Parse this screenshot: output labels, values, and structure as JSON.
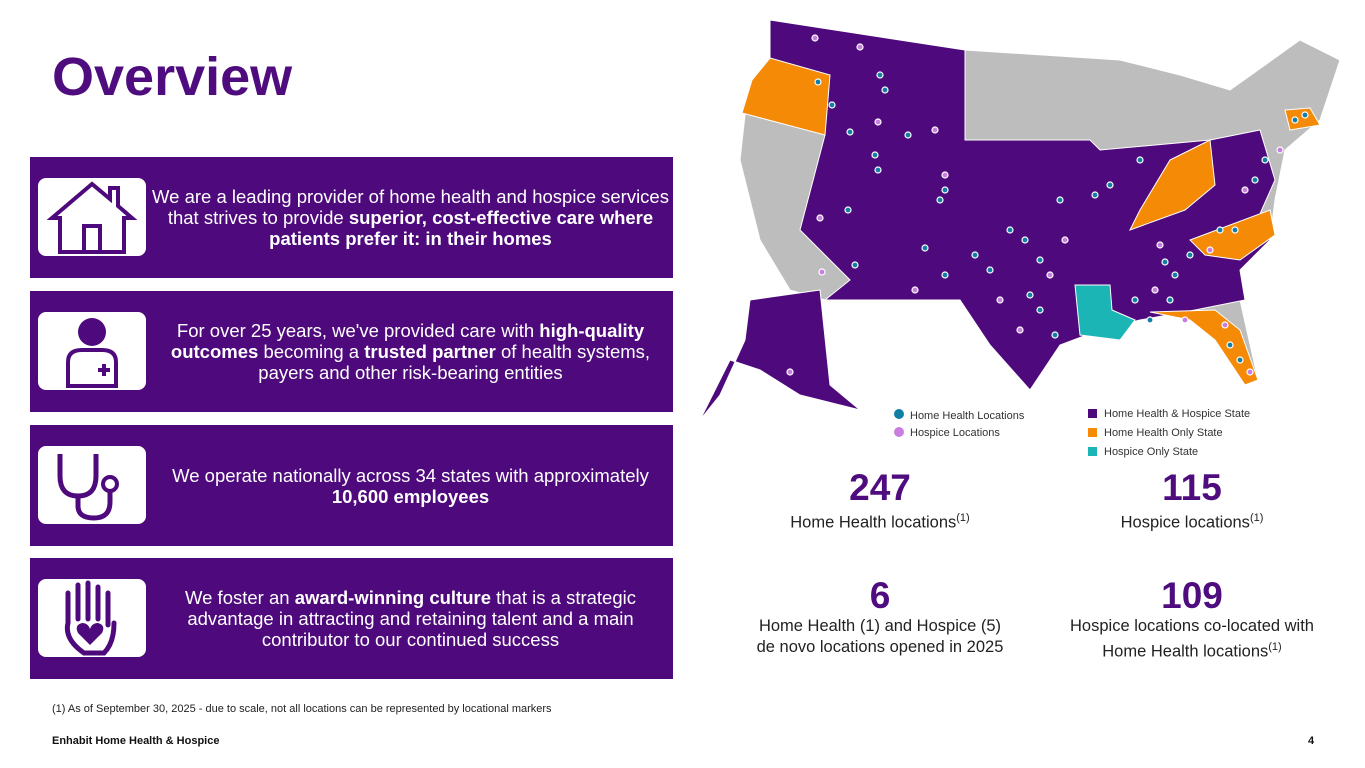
{
  "title": "Overview",
  "cards": [
    {
      "text": [
        "We are a leading provider of home health and hospice services that strives to provide ",
        "superior, cost-effective care where patients prefer it: in their homes"
      ]
    },
    {
      "text": [
        "For over 25 years, we've provided care with ",
        "high-quality outcomes",
        " becoming a ",
        "trusted partner",
        " of health systems, payers and other risk-bearing entities"
      ]
    },
    {
      "text": [
        "We operate nationally across 34 states with approximately ",
        "10,600 employees"
      ]
    },
    {
      "text": [
        "We foster an ",
        "award-winning culture",
        " that is a strategic advantage in attracting and retaining talent and a main contributor to our continued success"
      ]
    }
  ],
  "legend": [
    "Home Health Locations",
    "Hospice Locations",
    "Home Health & Hospice State",
    "Home Health Only State",
    "Hospice Only State"
  ],
  "stats": [
    {
      "value": 247,
      "lines": [
        "Home Health locations"
      ],
      "note_ref": "(1)"
    },
    {
      "value": 115,
      "lines": [
        "Hospice locations"
      ],
      "note_ref": "(1)"
    },
    {
      "value": 6,
      "lines": [
        "Home Health (1) and Hospice (5)",
        "de novo locations opened in 2025"
      ]
    },
    {
      "value": 109,
      "lines": [
        "Hospice locations co-located with",
        "Home Health locations"
      ],
      "note_ref": "(1)"
    }
  ],
  "footnote": "(1) As of September 30, 2025 - due to scale, not all locations can be represented by locational markers",
  "footer": "Enhabit Home Health & Hospice",
  "page_number": "4"
}
